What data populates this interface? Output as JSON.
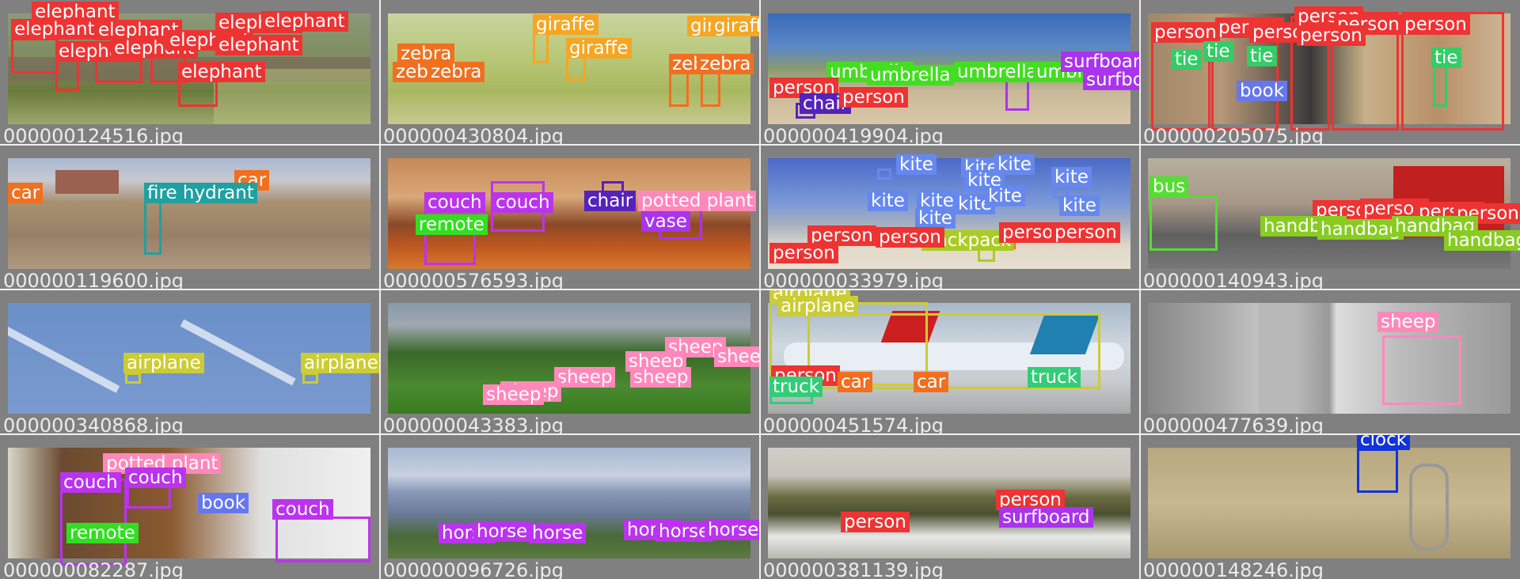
{
  "colors": {
    "background": "#808080",
    "separator": "#f0f0f0",
    "filename_text": "#ececec",
    "person": "#ee3333",
    "elephant": "#ee3333",
    "giraffe": "#f5a623",
    "zebra": "#f07020",
    "umbrella": "#44dd22",
    "surfboard": "#aa33ee",
    "chair": "#5522bb",
    "tie": "#33cc66",
    "book": "#6677ee",
    "car": "#f07020",
    "fire_hydrant": "#20a0a0",
    "couch": "#bb33ee",
    "remote": "#33dd22",
    "potted_plant": "#ff88bb",
    "vase": "#aa33ee",
    "kite": "#6688ee",
    "backpack": "#aacc22",
    "bus": "#55dd33",
    "handbag": "#88cc22",
    "airplane": "#cccc33",
    "truck": "#33cc77",
    "sheep": "#ff88bb",
    "horse": "#bb33ee",
    "clock": "#1133dd"
  },
  "grid": {
    "cells": [
      {
        "filename": "000000124516.jpg",
        "image_desc": "elephants grassland",
        "labels": [
          "elephant",
          "elephant",
          "elephant",
          "elephant",
          "elephant",
          "elephant",
          "elephant",
          "elephant",
          "elephant",
          "elephant"
        ]
      },
      {
        "filename": "000000430804.jpg",
        "image_desc": "giraffes zebras savanna",
        "labels": [
          "giraffe",
          "giraffe",
          "giraffe",
          "giraffe",
          "zebra",
          "zebra",
          "zebra",
          "zebra",
          "zebra"
        ]
      },
      {
        "filename": "000000419904.jpg",
        "image_desc": "beach umbrellas",
        "labels": [
          "umbrella",
          "umbrella",
          "umbrella",
          "umbrella",
          "surfboard",
          "surfboard",
          "person",
          "chair",
          "person"
        ]
      },
      {
        "filename": "000000205075.jpg",
        "image_desc": "men in suits",
        "labels": [
          "person",
          "person",
          "person",
          "person",
          "person",
          "person",
          "person",
          "tie",
          "tie",
          "tie",
          "tie",
          "book"
        ]
      },
      {
        "filename": "000000119600.jpg",
        "image_desc": "construction site",
        "labels": [
          "car",
          "car",
          "fire hydrant"
        ]
      },
      {
        "filename": "000000576593.jpg",
        "image_desc": "living room",
        "labels": [
          "couch",
          "couch",
          "chair",
          "potted plant",
          "remote",
          "vase"
        ]
      },
      {
        "filename": "000000033979.jpg",
        "image_desc": "kites on beach",
        "labels": [
          "kite",
          "kite",
          "kite",
          "kite",
          "kite",
          "kite",
          "kite",
          "kite",
          "kite",
          "kite",
          "kite",
          "backpack",
          "person",
          "person",
          "person",
          "person",
          "person"
        ]
      },
      {
        "filename": "000000140943.jpg",
        "image_desc": "street with bus",
        "labels": [
          "bus",
          "person",
          "person",
          "person",
          "person",
          "handbag",
          "handbag",
          "handbag",
          "handbag"
        ]
      },
      {
        "filename": "000000340868.jpg",
        "image_desc": "sky with contrail",
        "labels": [
          "airplane",
          "airplane"
        ]
      },
      {
        "filename": "000000043383.jpg",
        "image_desc": "green hills sheep",
        "labels": [
          "sheep",
          "sheep",
          "sheep",
          "sheep",
          "sheep",
          "sheep",
          "sheep"
        ]
      },
      {
        "filename": "000000451574.jpg",
        "image_desc": "airport apron",
        "labels": [
          "airplane",
          "airplane",
          "person",
          "car",
          "car",
          "truck",
          "truck"
        ]
      },
      {
        "filename": "000000477639.jpg",
        "image_desc": "sheep black and white",
        "labels": [
          "sheep"
        ]
      },
      {
        "filename": "000000082287.jpg",
        "image_desc": "living room couches",
        "labels": [
          "potted plant",
          "couch",
          "couch",
          "couch",
          "book",
          "remote"
        ]
      },
      {
        "filename": "000000096726.jpg",
        "image_desc": "horses in valley",
        "labels": [
          "horse",
          "horse",
          "horse",
          "horse",
          "horse",
          "horse"
        ]
      },
      {
        "filename": "000000381139.jpg",
        "image_desc": "surfer cliff wave",
        "labels": [
          "person",
          "person",
          "surfboard"
        ]
      },
      {
        "filename": "000000148246.jpg",
        "image_desc": "wall with clock and mirror",
        "labels": [
          "clock"
        ]
      }
    ]
  }
}
